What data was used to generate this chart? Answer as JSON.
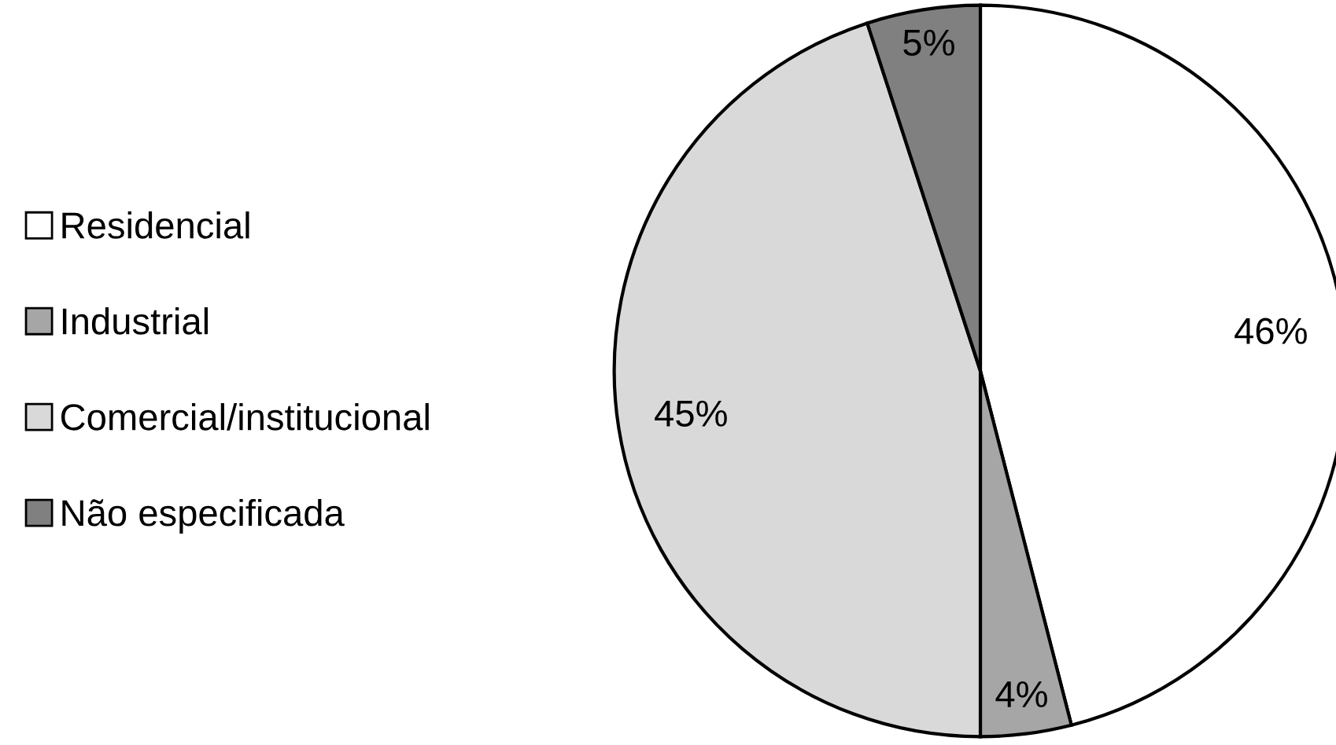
{
  "chart_data": {
    "type": "pie",
    "categories": [
      "Residencial",
      "Industrial",
      "Comercial/institucional",
      "Não especificada"
    ],
    "values": [
      46,
      4,
      45,
      5
    ],
    "colors": [
      "#ffffff",
      "#a6a6a6",
      "#d9d9d9",
      "#808080"
    ],
    "value_labels": [
      "46%",
      "4%",
      "45%",
      "5%"
    ],
    "legend": "left"
  }
}
